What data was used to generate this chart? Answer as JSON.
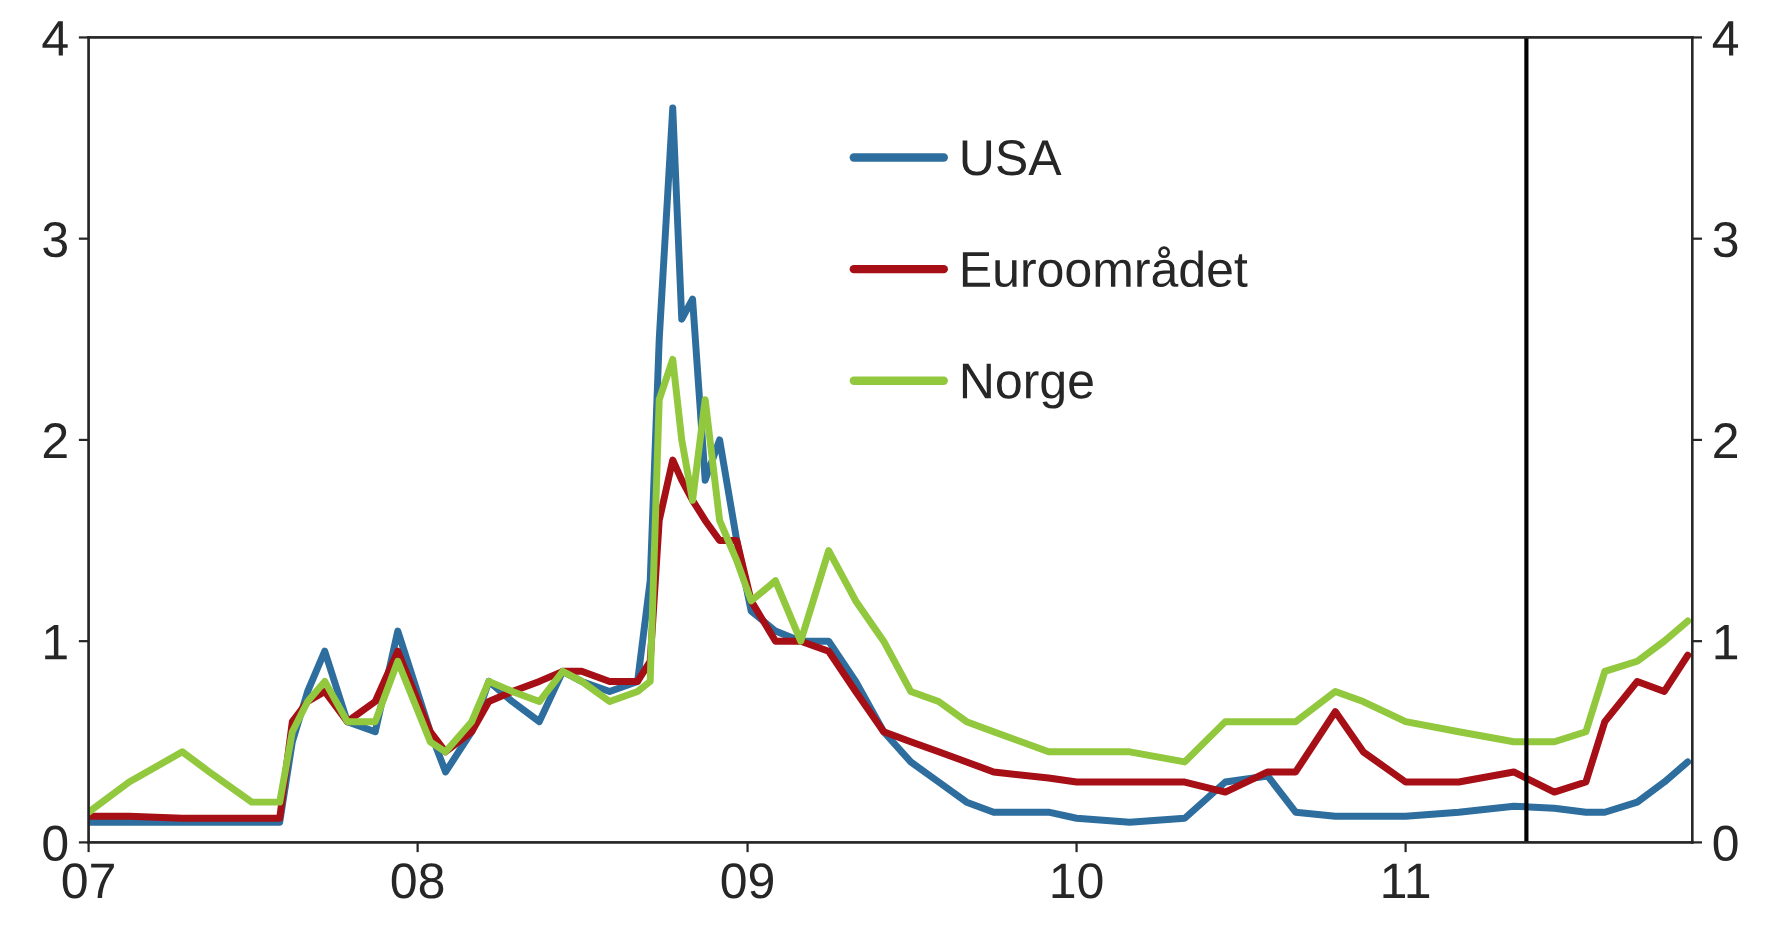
{
  "chart_data": {
    "type": "line",
    "x": [
      "2007-01-01",
      "2007-02-15",
      "2007-04-15",
      "2007-05-15",
      "2007-07-01",
      "2007-08-01",
      "2007-08-15",
      "2007-09-01",
      "2007-09-20",
      "2007-10-15",
      "2007-11-15",
      "2007-12-10",
      "2008-01-15",
      "2008-02-01",
      "2008-03-01",
      "2008-03-20",
      "2008-04-15",
      "2008-05-15",
      "2008-06-10",
      "2008-07-01",
      "2008-08-01",
      "2008-09-01",
      "2008-09-15",
      "2008-09-25",
      "2008-10-10",
      "2008-10-20",
      "2008-11-01",
      "2008-11-15",
      "2008-12-01",
      "2008-12-20",
      "2009-01-05",
      "2009-02-01",
      "2009-03-01",
      "2009-04-01",
      "2009-05-01",
      "2009-06-01",
      "2009-07-01",
      "2009-08-01",
      "2009-09-01",
      "2009-10-01",
      "2009-12-01",
      "2010-01-01",
      "2010-03-01",
      "2010-05-01",
      "2010-06-15",
      "2010-08-01",
      "2010-09-01",
      "2010-10-15",
      "2010-11-15",
      "2011-01-01",
      "2011-03-01",
      "2011-05-01",
      "2011-06-15",
      "2011-07-20",
      "2011-08-10",
      "2011-09-15",
      "2011-10-15",
      "2011-11-10"
    ],
    "series": [
      {
        "name": "USA",
        "color": "#2e6e9e",
        "values": [
          0.1,
          0.1,
          0.1,
          0.1,
          0.1,
          0.1,
          0.5,
          0.75,
          0.95,
          0.6,
          0.55,
          1.05,
          0.55,
          0.35,
          0.55,
          0.8,
          0.7,
          0.6,
          0.85,
          0.8,
          0.75,
          0.8,
          1.3,
          2.5,
          3.65,
          2.6,
          2.7,
          1.8,
          2.0,
          1.5,
          1.15,
          1.05,
          1.0,
          1.0,
          0.8,
          0.55,
          0.4,
          0.3,
          0.2,
          0.15,
          0.15,
          0.12,
          0.1,
          0.12,
          0.3,
          0.33,
          0.15,
          0.13,
          0.13,
          0.13,
          0.15,
          0.18,
          0.17,
          0.15,
          0.15,
          0.2,
          0.3,
          0.4
        ]
      },
      {
        "name": "Euroområdet",
        "color": "#a50f15",
        "values": [
          0.13,
          0.13,
          0.12,
          0.12,
          0.12,
          0.12,
          0.6,
          0.7,
          0.75,
          0.6,
          0.7,
          0.95,
          0.55,
          0.45,
          0.55,
          0.7,
          0.75,
          0.8,
          0.85,
          0.85,
          0.8,
          0.8,
          0.9,
          1.6,
          1.9,
          1.8,
          1.7,
          1.6,
          1.5,
          1.5,
          1.2,
          1.0,
          1.0,
          0.95,
          0.75,
          0.55,
          0.5,
          0.45,
          0.4,
          0.35,
          0.32,
          0.3,
          0.3,
          0.3,
          0.25,
          0.35,
          0.35,
          0.65,
          0.45,
          0.3,
          0.3,
          0.35,
          0.25,
          0.3,
          0.6,
          0.8,
          0.75,
          0.93
        ]
      },
      {
        "name": "Norge",
        "color": "#92c83e",
        "values": [
          0.15,
          0.3,
          0.45,
          0.35,
          0.2,
          0.2,
          0.55,
          0.7,
          0.8,
          0.6,
          0.6,
          0.9,
          0.5,
          0.45,
          0.6,
          0.8,
          0.75,
          0.7,
          0.85,
          0.8,
          0.7,
          0.75,
          0.8,
          2.2,
          2.4,
          2.0,
          1.7,
          2.2,
          1.6,
          1.4,
          1.2,
          1.3,
          1.0,
          1.45,
          1.2,
          1.0,
          0.75,
          0.7,
          0.6,
          0.55,
          0.45,
          0.45,
          0.45,
          0.4,
          0.6,
          0.6,
          0.6,
          0.75,
          0.7,
          0.6,
          0.55,
          0.5,
          0.5,
          0.55,
          0.85,
          0.9,
          1.0,
          1.1
        ]
      }
    ],
    "xlim": [
      "2007-01-01",
      "2011-11-15"
    ],
    "xticks": [
      {
        "value": "2007-01-01",
        "label": "07"
      },
      {
        "value": "2008-01-01",
        "label": "08"
      },
      {
        "value": "2009-01-01",
        "label": "09"
      },
      {
        "value": "2010-01-01",
        "label": "10"
      },
      {
        "value": "2011-01-01",
        "label": "11"
      }
    ],
    "ylim": [
      0,
      4
    ],
    "yticks": [
      0,
      1,
      2,
      3,
      4
    ],
    "y2lim": [
      0,
      4
    ],
    "y2ticks": [
      0,
      1,
      2,
      3,
      4
    ],
    "ref_lines": [
      {
        "axis": "x",
        "value": "2011-05-15",
        "label": null,
        "color": "#000000"
      }
    ],
    "legend": "top",
    "grid": false
  }
}
